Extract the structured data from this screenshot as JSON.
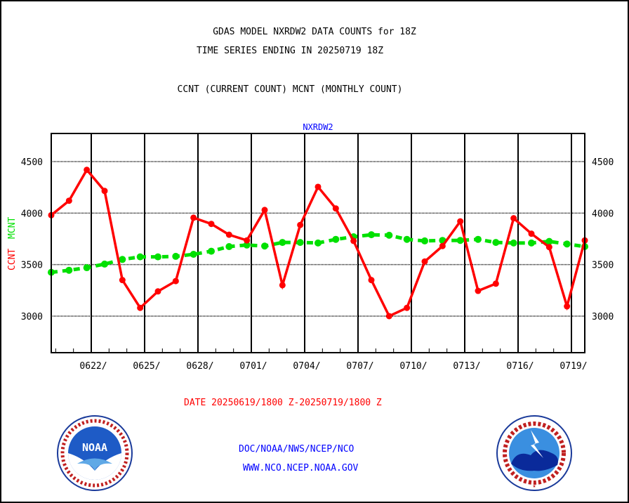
{
  "header": {
    "title_line1": "GDAS MODEL NXRDW2 DATA COUNTS for 18Z",
    "title_line2": "TIME SERIES ENDING IN 20250719 18Z",
    "subtitle": "CCNT (CURRENT COUNT) MCNT (MONTHLY COUNT)"
  },
  "footer": {
    "date_range": "DATE 20250619/1800 Z-20250719/1800 Z",
    "org_path": "DOC/NOAA/NWS/NCEP/NCO",
    "website": "WWW.NCO.NCEP.NOAA.GOV"
  },
  "logos": {
    "left": "NOAA",
    "right": "NATIONAL WEATHER SERVICE"
  },
  "colors": {
    "ccnt": "#ff0000",
    "mcnt": "#00e000",
    "panel_label": "#0000ff"
  },
  "chart_data": {
    "type": "line",
    "title": "NXRDW2",
    "ylabel_parts": [
      "CCNT",
      "MCNT"
    ],
    "xlabel": "",
    "x_tick_labels": [
      "0622/",
      "0625/",
      "0628/",
      "0701/",
      "0704/",
      "0707/",
      "0710/",
      "0713/",
      "0716/",
      "0719/"
    ],
    "y_ticks": [
      3000,
      3500,
      4000,
      4500
    ],
    "y_tick_labels": [
      "3000",
      "3500",
      "4000",
      "4500"
    ],
    "ylim": [
      2645,
      4773
    ],
    "x_days_range": [
      0,
      30
    ],
    "x_start": "20250619 18Z",
    "grid": true,
    "series": [
      {
        "name": "CCNT",
        "color": "#ff0000",
        "style": "solid",
        "values": [
          3980,
          4120,
          4420,
          4215,
          3350,
          3080,
          3240,
          3340,
          3955,
          3895,
          3790,
          3735,
          4030,
          3300,
          3885,
          4255,
          4045,
          3730,
          3350,
          3000,
          3080,
          3530,
          3680,
          3920,
          3245,
          3315,
          3950,
          3800,
          3670,
          3095,
          3735
        ]
      },
      {
        "name": "MCNT",
        "color": "#00e000",
        "style": "dashed",
        "values": [
          3425,
          3445,
          3470,
          3505,
          3550,
          3575,
          3575,
          3580,
          3600,
          3630,
          3675,
          3690,
          3680,
          3715,
          3715,
          3710,
          3745,
          3770,
          3790,
          3785,
          3745,
          3730,
          3735,
          3735,
          3745,
          3715,
          3710,
          3710,
          3725,
          3700,
          3675
        ]
      }
    ]
  }
}
